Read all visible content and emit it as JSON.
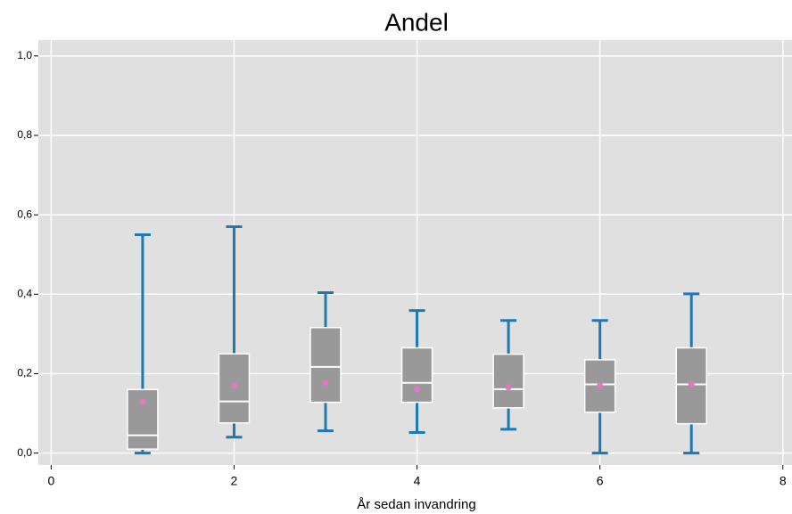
{
  "chart_data": {
    "type": "box",
    "title": "Andel",
    "x_label": "År sedan invandring",
    "x": [
      1,
      2,
      3,
      4,
      5,
      6,
      7
    ],
    "whislo": [
      0.0,
      0.04,
      0.056,
      0.052,
      0.06,
      0.0,
      0.0
    ],
    "q1": [
      0.01,
      0.076,
      0.128,
      0.128,
      0.114,
      0.103,
      0.074
    ],
    "median": [
      0.045,
      0.13,
      0.217,
      0.177,
      0.161,
      0.173,
      0.173
    ],
    "q3": [
      0.16,
      0.25,
      0.316,
      0.265,
      0.249,
      0.235,
      0.265
    ],
    "whishi": [
      0.55,
      0.57,
      0.404,
      0.359,
      0.334,
      0.334,
      0.401
    ],
    "mean": [
      0.13,
      0.17,
      0.177,
      0.161,
      0.166,
      0.17,
      0.173
    ],
    "box_color": "#999999",
    "whisker_color": "#1f77b4",
    "mean_color": "#e377c2",
    "xlim": [
      -0.14,
      8.1
    ],
    "ylim": [
      -0.03,
      1.04
    ],
    "xticks": [
      0,
      2,
      4,
      6,
      8
    ],
    "yticks": [
      {
        "value": 0,
        "label": "0,0"
      },
      {
        "value": 0.2,
        "label": "0,2"
      },
      {
        "value": 0.4,
        "label": "0,4"
      },
      {
        "value": 0.6,
        "label": "0,6"
      },
      {
        "value": 0.8,
        "label": "0,8"
      },
      {
        "value": 1.0,
        "label": "1,0"
      }
    ],
    "grid": true
  }
}
